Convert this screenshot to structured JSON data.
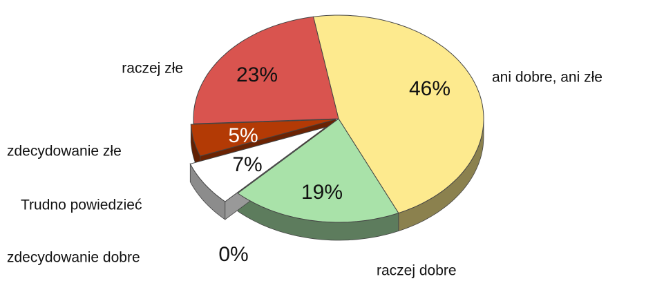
{
  "chart_data": {
    "type": "pie",
    "categories": [
      "ani dobre, ani złe",
      "raczej dobre",
      "zdecydowanie dobre",
      "Trudno powiedzieć",
      "zdecydowanie złe",
      "raczej złe"
    ],
    "values": [
      46,
      19,
      0,
      7,
      5,
      23
    ],
    "value_labels": [
      "46%",
      "19%",
      "0%",
      "7%",
      "5%",
      "23%"
    ],
    "colors": [
      "#fdea8e",
      "#a9e2a9",
      "#ffffff",
      "#ffffff",
      "#b33a05",
      "#d9544f"
    ]
  }
}
